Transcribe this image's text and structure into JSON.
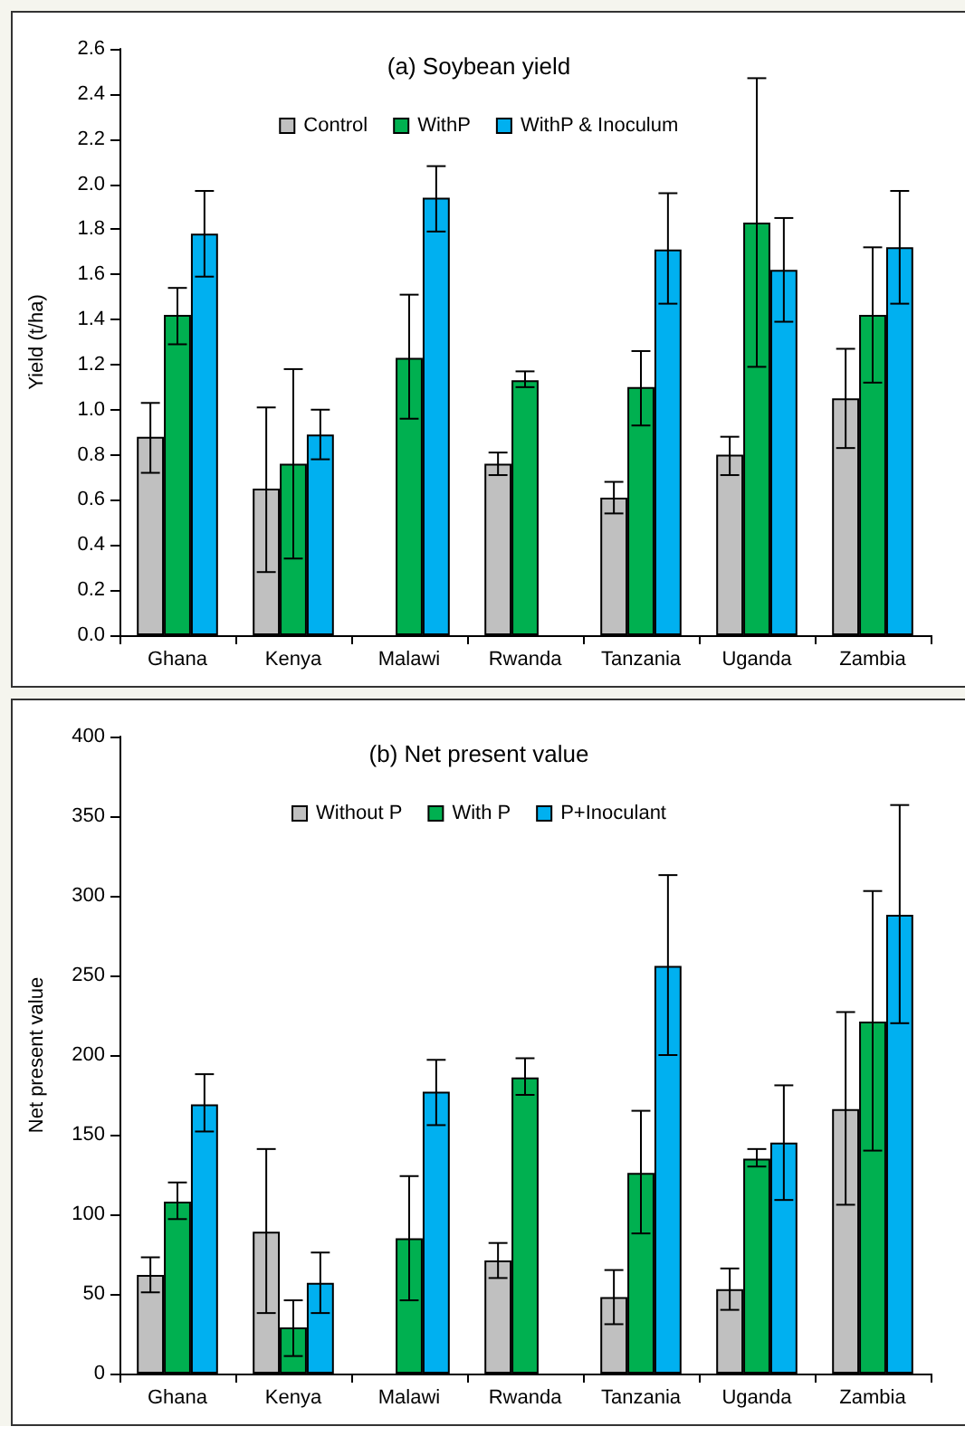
{
  "chart_data": [
    {
      "type": "bar",
      "title": "(a) Soybean yield",
      "ylabel": "Yield (t/ha)",
      "categories": [
        "Ghana",
        "Kenya",
        "Malawi",
        "Rwanda",
        "Tanzania",
        "Uganda",
        "Zambia"
      ],
      "ylim": [
        0,
        2.6
      ],
      "yticks": [
        {
          "value": 0,
          "label": "0.0"
        },
        0.2,
        0.4,
        0.6,
        0.8,
        {
          "value": 1,
          "label": "1.0"
        },
        1.2,
        1.4,
        1.6,
        1.8,
        {
          "value": 2,
          "label": "2.0"
        },
        2.2,
        2.4,
        2.6
      ],
      "grid": false,
      "legend": "top",
      "series": [
        {
          "name": "Control",
          "color": "#c0c0c0",
          "values": [
            0.88,
            0.65,
            null,
            0.76,
            0.61,
            0.8,
            1.05
          ],
          "errors": [
            [
              0.72,
              1.03
            ],
            [
              0.28,
              1.01
            ],
            null,
            [
              0.71,
              0.81
            ],
            [
              0.54,
              0.68
            ],
            [
              0.71,
              0.88
            ],
            [
              0.83,
              1.27
            ]
          ]
        },
        {
          "name": "WithP",
          "color": "#00b050",
          "values": [
            1.42,
            0.76,
            1.23,
            1.13,
            1.1,
            1.83,
            1.42
          ],
          "errors": [
            [
              1.29,
              1.54
            ],
            [
              0.34,
              1.18
            ],
            [
              0.96,
              1.51
            ],
            [
              1.1,
              1.17
            ],
            [
              0.93,
              1.26
            ],
            [
              1.19,
              2.47
            ],
            [
              1.12,
              1.72
            ]
          ]
        },
        {
          "name": "WithP & Inoculum",
          "color": "#00b0f0",
          "values": [
            1.78,
            0.89,
            1.94,
            null,
            1.71,
            1.62,
            1.72
          ],
          "errors": [
            [
              1.59,
              1.97
            ],
            [
              0.78,
              1.0
            ],
            [
              1.79,
              2.08
            ],
            null,
            [
              1.47,
              1.96
            ],
            [
              1.39,
              1.85
            ],
            [
              1.47,
              1.97
            ]
          ]
        }
      ]
    },
    {
      "type": "bar",
      "title": "(b) Net present value",
      "ylabel": "Net present value",
      "categories": [
        "Ghana",
        "Kenya",
        "Malawi",
        "Rwanda",
        "Tanzania",
        "Uganda",
        "Zambia"
      ],
      "ylim": [
        0,
        400
      ],
      "yticks": [
        0,
        50,
        100,
        150,
        200,
        250,
        300,
        350,
        400
      ],
      "grid": false,
      "legend": "top",
      "series": [
        {
          "name": "Without P",
          "color": "#c0c0c0",
          "values": [
            62,
            89,
            null,
            71,
            48,
            53,
            166
          ],
          "errors": [
            [
              51,
              73
            ],
            [
              38,
              141
            ],
            null,
            [
              60,
              82
            ],
            [
              31,
              65
            ],
            [
              40,
              66
            ],
            [
              106,
              227
            ]
          ]
        },
        {
          "name": "With P",
          "color": "#00b050",
          "values": [
            108,
            29,
            85,
            186,
            126,
            135,
            221
          ],
          "errors": [
            [
              97,
              120
            ],
            [
              11,
              46
            ],
            [
              46,
              124
            ],
            [
              175,
              198
            ],
            [
              88,
              165
            ],
            [
              130,
              141
            ],
            [
              140,
              303
            ]
          ]
        },
        {
          "name": "P+Inoculant",
          "color": "#00b0f0",
          "values": [
            169,
            57,
            177,
            null,
            256,
            145,
            288
          ],
          "errors": [
            [
              152,
              188
            ],
            [
              38,
              76
            ],
            [
              156,
              197
            ],
            null,
            [
              200,
              313
            ],
            [
              109,
              181
            ],
            [
              220,
              357
            ]
          ]
        }
      ]
    }
  ]
}
